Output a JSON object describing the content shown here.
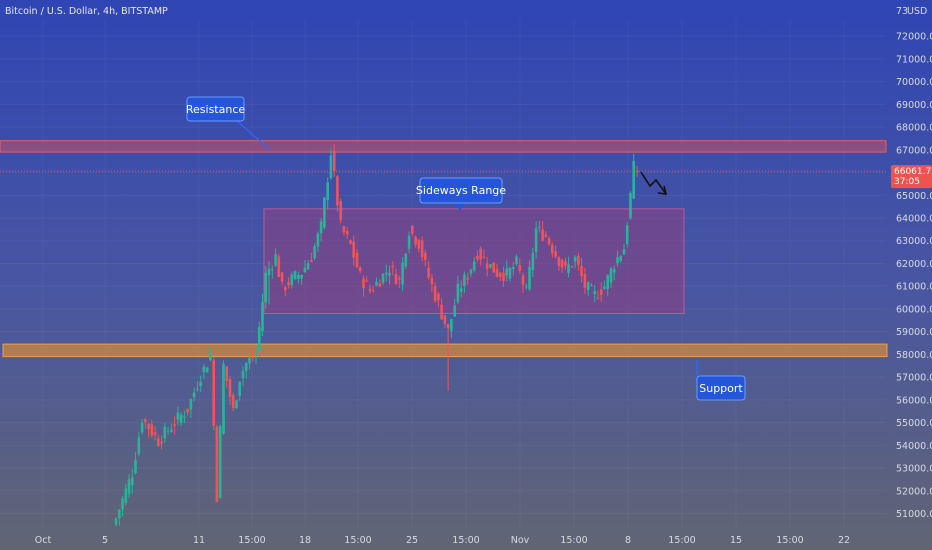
{
  "header": {
    "title": "Bitcoin / U.S. Dollar, 4h, BITSTAMP",
    "currency": "USD",
    "top_tick_partial": "73"
  },
  "colors": {
    "bg_top": "#2f45b4",
    "bg_bottom": "#616573",
    "up": "#2bb39a",
    "down": "#f0545a",
    "resistance_fill": "#c9505e",
    "support_fill": "#d08a3c",
    "range_fill": "#8e3f80",
    "callout": "#2556d9",
    "price_tag": "#ef5350"
  },
  "current_price": {
    "value": "66061.72",
    "countdown": "37:05",
    "level": 66061.72
  },
  "chart_data": {
    "type": "candlestick",
    "title": "Bitcoin / U.S. Dollar, 4h, BITSTAMP",
    "ylim": [
      50500,
      73500
    ],
    "y_ticks": [
      51000,
      52000,
      53000,
      54000,
      55000,
      56000,
      57000,
      58000,
      59000,
      60000,
      61000,
      62000,
      63000,
      64000,
      65000,
      66000,
      67000,
      68000,
      69000,
      70000,
      71000,
      72000
    ],
    "y_tick_labels": [
      "51000.00",
      "52000.00",
      "53000.00",
      "54000.00",
      "55000.00",
      "56000.00",
      "57000.00",
      "58000.00",
      "59000.00",
      "60000.00",
      "61000.00",
      "62000.00",
      "63000.00",
      "64000.00",
      "65000.00",
      "66000.00",
      "67000.00",
      "68000.00",
      "69000.00",
      "70000.00",
      "71000.00",
      "72000.00"
    ],
    "x_labels": [
      "Oct",
      "5",
      "11",
      "15:00",
      "18",
      "15:00",
      "25",
      "15:00",
      "Nov",
      "15:00",
      "8",
      "15:00",
      "15",
      "15:00",
      "22"
    ],
    "zones": [
      {
        "name": "resistance",
        "low": 66900,
        "high": 67400
      },
      {
        "name": "support",
        "low": 57900,
        "high": 58450
      },
      {
        "name": "range",
        "low": 59800,
        "high": 64400
      }
    ],
    "annotations": [
      {
        "name": "resistance",
        "text": "Resistance"
      },
      {
        "name": "range",
        "text": "Sideways Range"
      },
      {
        "name": "support",
        "text": "Support"
      }
    ],
    "keypoints": [
      [
        0,
        50800
      ],
      [
        5,
        52800
      ],
      [
        8,
        55200
      ],
      [
        13,
        54200
      ],
      [
        18,
        55000
      ],
      [
        22,
        55600
      ],
      [
        26,
        57100
      ],
      [
        29,
        57900
      ],
      [
        31,
        51800
      ],
      [
        33,
        57500
      ],
      [
        36,
        55500
      ],
      [
        38,
        57000
      ],
      [
        40,
        57600
      ],
      [
        43,
        58000
      ],
      [
        46,
        61500
      ],
      [
        49,
        62300
      ],
      [
        51,
        60900
      ],
      [
        54,
        61300
      ],
      [
        57,
        61600
      ],
      [
        60,
        62300
      ],
      [
        63,
        63600
      ],
      [
        66,
        66900
      ],
      [
        69,
        63600
      ],
      [
        72,
        62800
      ],
      [
        75,
        61400
      ],
      [
        78,
        60800
      ],
      [
        81,
        61300
      ],
      [
        84,
        61800
      ],
      [
        87,
        61200
      ],
      [
        90,
        63500
      ],
      [
        93,
        62900
      ],
      [
        96,
        61400
      ],
      [
        99,
        60200
      ],
      [
        102,
        59000
      ],
      [
        105,
        60800
      ],
      [
        108,
        61500
      ],
      [
        111,
        62500
      ],
      [
        114,
        62000
      ],
      [
        117,
        61600
      ],
      [
        120,
        61500
      ],
      [
        123,
        62000
      ],
      [
        126,
        60700
      ],
      [
        129,
        63500
      ],
      [
        132,
        63200
      ],
      [
        135,
        62400
      ],
      [
        138,
        61700
      ],
      [
        141,
        62200
      ],
      [
        144,
        61000
      ],
      [
        147,
        60600
      ],
      [
        150,
        61000
      ],
      [
        153,
        62000
      ],
      [
        156,
        62700
      ],
      [
        158,
        65000
      ],
      [
        159,
        66200
      ],
      [
        160,
        66100
      ]
    ]
  }
}
